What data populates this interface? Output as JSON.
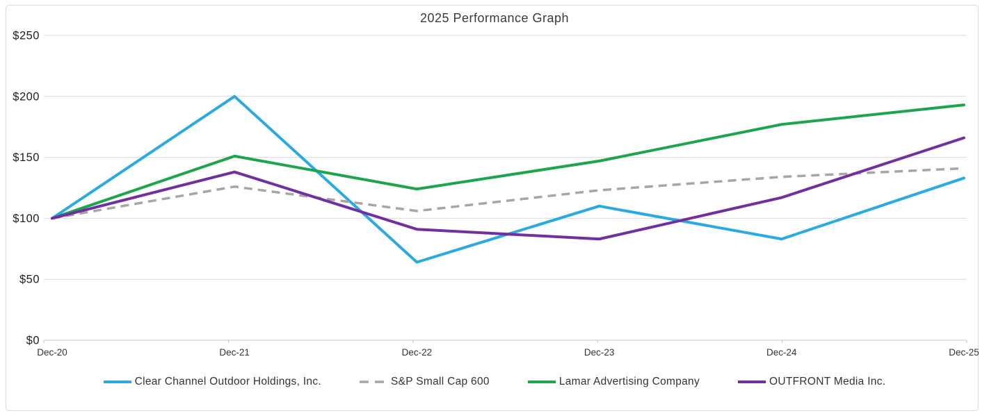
{
  "chart_data": {
    "type": "line",
    "title": "2025 Performance Graph",
    "categories": [
      "Dec-20",
      "Dec-21",
      "Dec-22",
      "Dec-23",
      "Dec-24",
      "Dec-25"
    ],
    "series": [
      {
        "name": "Clear Channel Outdoor Holdings, Inc.",
        "color": "#29ABE2",
        "dash": null,
        "values": [
          100,
          200,
          64,
          110,
          83,
          133
        ]
      },
      {
        "name": "S&P Small Cap 600",
        "color": "#A6A6A6",
        "dash": "12 8",
        "values": [
          100,
          126,
          106,
          123,
          134,
          141
        ]
      },
      {
        "name": "Lamar Advertising Company",
        "color": "#1BA64C",
        "dash": null,
        "values": [
          100,
          151,
          124,
          147,
          177,
          193
        ]
      },
      {
        "name": "OUTFRONT Media Inc.",
        "color": "#7030A0",
        "dash": null,
        "values": [
          100,
          138,
          91,
          83,
          117,
          166
        ]
      }
    ],
    "y_axis": {
      "min": 0,
      "max": 250,
      "step": 50,
      "tick_labels": [
        "$0",
        "$50",
        "$100",
        "$150",
        "$200",
        "$250"
      ]
    },
    "x_axis": {
      "tick_labels": [
        "Dec-20",
        "Dec-21",
        "Dec-22",
        "Dec-23",
        "Dec-24",
        "Dec-25"
      ]
    },
    "grid": "horizontal-only",
    "legend_position": "bottom"
  },
  "style": {
    "background": "#FFFFFF",
    "border_color": "#D9D9D9",
    "gridline_color": "#D9D9D9",
    "axis_color": "#C6C6C6",
    "title_color": "#3A3A3A",
    "y_label_color": "#1F1F1F",
    "x_label_color": "#333333"
  }
}
